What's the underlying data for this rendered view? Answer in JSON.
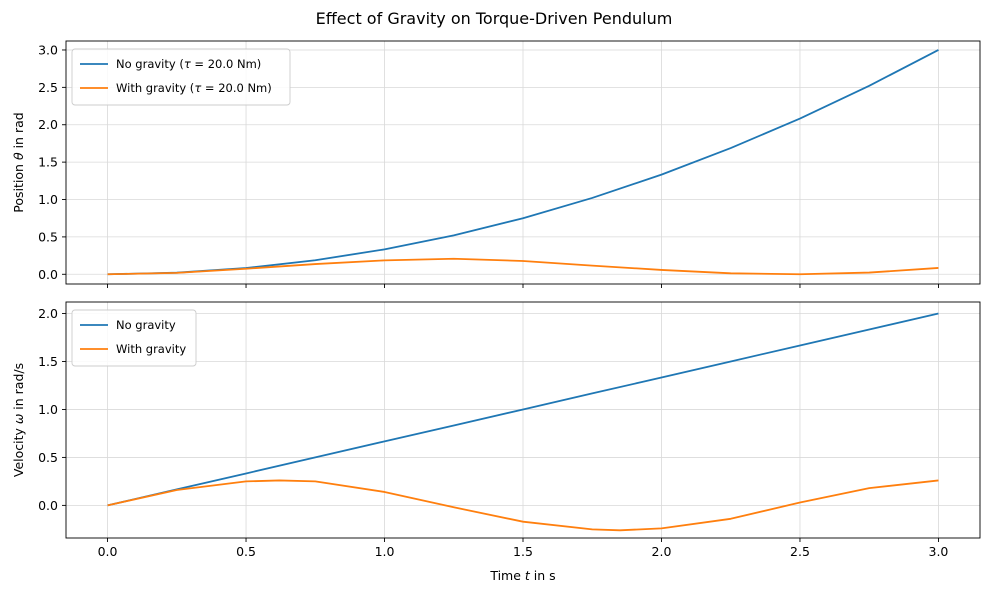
{
  "figure_title": "Effect of Gravity on Torque-Driven Pendulum",
  "colors": {
    "no_gravity": "#1f77b4",
    "with_gravity": "#ff7f0e",
    "grid": "#d9d9d9",
    "axes": "#000000"
  },
  "chart_data": [
    {
      "type": "line",
      "title": "",
      "xlabel": "",
      "ylabel_parts": [
        "Position ",
        "θ",
        " in rad"
      ],
      "xlim": [
        -0.15,
        3.15
      ],
      "ylim": [
        -0.13,
        3.12
      ],
      "xticks": [
        0.0,
        0.5,
        1.0,
        1.5,
        2.0,
        2.5,
        3.0
      ],
      "xtick_labels": [],
      "yticks": [
        0.0,
        0.5,
        1.0,
        1.5,
        2.0,
        2.5,
        3.0
      ],
      "ytick_labels": [
        "0.0",
        "0.5",
        "1.0",
        "1.5",
        "2.0",
        "2.5",
        "3.0"
      ],
      "grid": true,
      "legend_position": "top-left",
      "legend": [
        {
          "parts": [
            "No gravity (",
            "τ",
            " = 20.0 Nm)"
          ],
          "series": "no_gravity"
        },
        {
          "parts": [
            "With gravity (",
            "τ",
            " = 20.0 Nm)"
          ],
          "series": "with_gravity"
        }
      ],
      "series": [
        {
          "key": "no_gravity",
          "x": [
            0,
            0.25,
            0.5,
            0.75,
            1.0,
            1.25,
            1.5,
            1.75,
            2.0,
            2.25,
            2.5,
            2.75,
            3.0
          ],
          "y": [
            0,
            0.021,
            0.083,
            0.188,
            0.333,
            0.521,
            0.75,
            1.021,
            1.333,
            1.688,
            2.083,
            2.521,
            3.0
          ]
        },
        {
          "key": "with_gravity",
          "x": [
            0,
            0.25,
            0.5,
            0.75,
            1.0,
            1.25,
            1.5,
            1.75,
            2.0,
            2.25,
            2.5,
            2.75,
            3.0
          ],
          "y": [
            0,
            0.019,
            0.074,
            0.137,
            0.186,
            0.208,
            0.178,
            0.116,
            0.058,
            0.013,
            0.0,
            0.023,
            0.085
          ]
        }
      ]
    },
    {
      "type": "line",
      "title": "",
      "xlabel_parts": [
        "Time ",
        "t",
        " in s"
      ],
      "ylabel_parts": [
        "Velocity ",
        "ω",
        " in rad/s"
      ],
      "xlim": [
        -0.15,
        3.15
      ],
      "ylim": [
        -0.34,
        2.12
      ],
      "xticks": [
        0.0,
        0.5,
        1.0,
        1.5,
        2.0,
        2.5,
        3.0
      ],
      "xtick_labels": [
        "0.0",
        "0.5",
        "1.0",
        "1.5",
        "2.0",
        "2.5",
        "3.0"
      ],
      "yticks": [
        0.0,
        0.5,
        1.0,
        1.5,
        2.0
      ],
      "ytick_labels": [
        "0.0",
        "0.5",
        "1.0",
        "1.5",
        "2.0"
      ],
      "grid": true,
      "legend_position": "top-left",
      "legend": [
        {
          "parts": [
            "No gravity"
          ],
          "series": "no_gravity"
        },
        {
          "parts": [
            "With gravity"
          ],
          "series": "with_gravity"
        }
      ],
      "series": [
        {
          "key": "no_gravity",
          "x": [
            0,
            0.25,
            0.5,
            0.75,
            1.0,
            1.25,
            1.5,
            1.75,
            2.0,
            2.25,
            2.5,
            2.75,
            3.0
          ],
          "y": [
            0,
            0.167,
            0.333,
            0.5,
            0.667,
            0.833,
            1.0,
            1.167,
            1.333,
            1.5,
            1.667,
            1.833,
            2.0
          ]
        },
        {
          "key": "with_gravity",
          "x": [
            0,
            0.25,
            0.5,
            0.62,
            0.75,
            1.0,
            1.25,
            1.5,
            1.75,
            1.85,
            2.0,
            2.25,
            2.5,
            2.75,
            3.0
          ],
          "y": [
            0,
            0.16,
            0.25,
            0.26,
            0.25,
            0.14,
            -0.02,
            -0.17,
            -0.25,
            -0.26,
            -0.24,
            -0.14,
            0.03,
            0.18,
            0.26
          ]
        }
      ]
    }
  ]
}
